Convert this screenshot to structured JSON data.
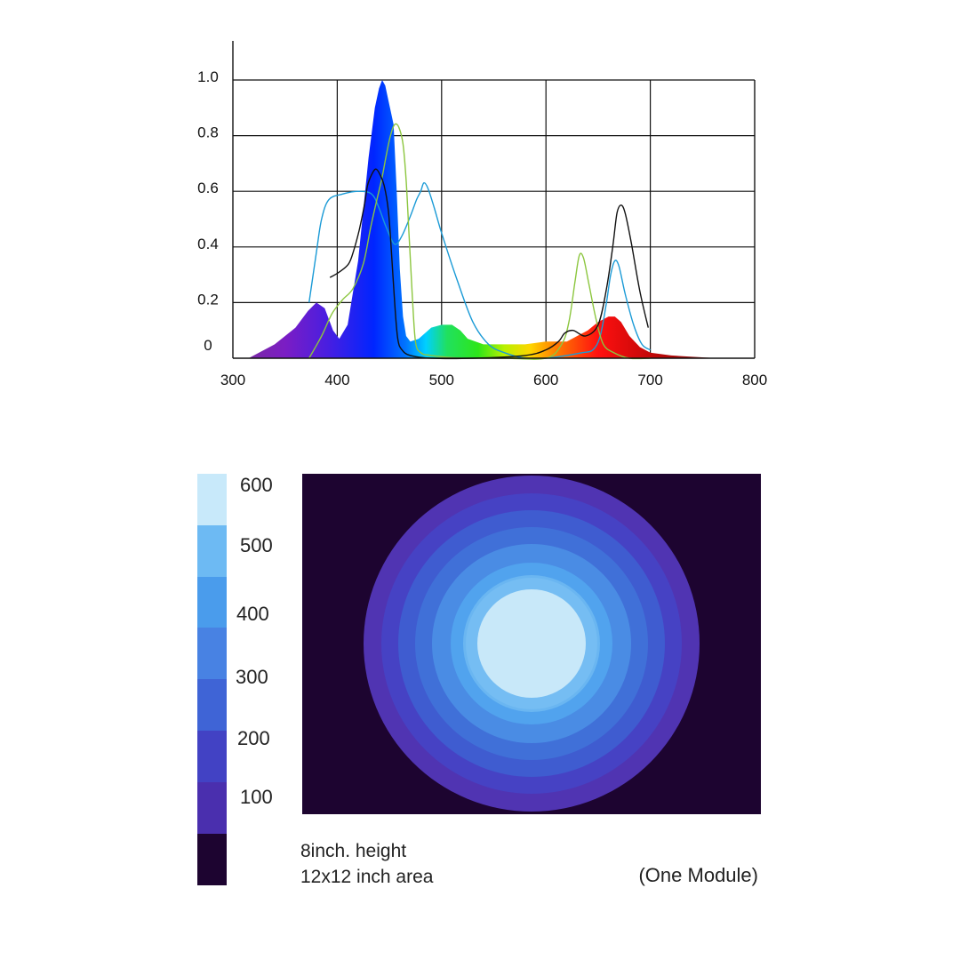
{
  "chart_data": [
    {
      "type": "area",
      "title": "",
      "xlabel": "",
      "ylabel": "",
      "xlim": [
        300,
        800
      ],
      "ylim": [
        0,
        1.0
      ],
      "x_ticks": [
        "300",
        "400",
        "500",
        "600",
        "700",
        "800"
      ],
      "y_ticks": [
        "1.0",
        "0.8",
        "0.6",
        "0.4",
        "0.2",
        "0"
      ],
      "grid": true,
      "filled_spectrum": {
        "x": [
          315,
          340,
          360,
          372,
          380,
          388,
          396,
          402,
          410,
          420,
          430,
          436,
          440,
          443,
          446,
          450,
          454,
          457,
          460,
          463,
          466,
          470,
          478,
          490,
          500,
          510,
          518,
          525,
          540,
          560,
          580,
          600,
          620,
          630,
          640,
          650,
          660,
          666,
          672,
          680,
          690,
          700,
          720,
          740,
          765
        ],
        "y": [
          0,
          0.05,
          0.11,
          0.17,
          0.2,
          0.18,
          0.1,
          0.07,
          0.12,
          0.35,
          0.72,
          0.9,
          0.97,
          1.0,
          0.98,
          0.91,
          0.84,
          0.6,
          0.32,
          0.15,
          0.08,
          0.06,
          0.07,
          0.11,
          0.12,
          0.12,
          0.1,
          0.07,
          0.05,
          0.05,
          0.05,
          0.06,
          0.06,
          0.08,
          0.1,
          0.13,
          0.15,
          0.15,
          0.13,
          0.08,
          0.04,
          0.02,
          0.01,
          0.005,
          0
        ]
      },
      "series": [
        {
          "color": "#1a9ad6",
          "x": [
            373,
            380,
            385,
            392,
            405,
            420,
            433,
            440,
            447,
            455,
            462,
            470,
            476,
            480,
            483,
            487,
            493,
            500,
            515,
            530,
            545,
            560,
            580,
            600,
            620,
            635,
            645,
            652,
            658,
            662,
            666,
            670,
            676,
            684,
            692,
            700
          ],
          "y": [
            0.2,
            0.38,
            0.5,
            0.57,
            0.59,
            0.6,
            0.59,
            0.54,
            0.47,
            0.41,
            0.44,
            0.51,
            0.57,
            0.6,
            0.63,
            0.61,
            0.54,
            0.45,
            0.28,
            0.13,
            0.05,
            0.02,
            0.0,
            0.0,
            0.01,
            0.02,
            0.03,
            0.08,
            0.2,
            0.3,
            0.35,
            0.33,
            0.23,
            0.12,
            0.05,
            0.03
          ]
        },
        {
          "color": "#8cc63f",
          "x": [
            373,
            385,
            395,
            405,
            415,
            425,
            432,
            438,
            443,
            447,
            451,
            455,
            459,
            463,
            466,
            469,
            472,
            475,
            480,
            490,
            520,
            560,
            600,
            615,
            622,
            628,
            632,
            636,
            641,
            648,
            655,
            665,
            680,
            700
          ],
          "y": [
            0.0,
            0.08,
            0.16,
            0.21,
            0.25,
            0.34,
            0.47,
            0.57,
            0.65,
            0.73,
            0.8,
            0.84,
            0.83,
            0.77,
            0.64,
            0.43,
            0.22,
            0.06,
            0.02,
            0.01,
            0.0,
            0.0,
            0.0,
            0.05,
            0.13,
            0.28,
            0.37,
            0.36,
            0.27,
            0.14,
            0.05,
            0.02,
            0.0,
            0.0
          ]
        },
        {
          "color": "#111111",
          "x": [
            393,
            402,
            411,
            416,
            421,
            426,
            429,
            433,
            437,
            441,
            445,
            449,
            452,
            455,
            458,
            462,
            470,
            490,
            530,
            580,
            600,
            612,
            618,
            626,
            638,
            650,
            658,
            664,
            668,
            672,
            676,
            682,
            690,
            698
          ],
          "y": [
            0.29,
            0.31,
            0.34,
            0.39,
            0.46,
            0.55,
            0.62,
            0.66,
            0.68,
            0.66,
            0.62,
            0.53,
            0.38,
            0.2,
            0.07,
            0.03,
            0.01,
            0.0,
            0.0,
            0.01,
            0.03,
            0.06,
            0.09,
            0.1,
            0.08,
            0.12,
            0.25,
            0.4,
            0.52,
            0.55,
            0.52,
            0.41,
            0.24,
            0.11
          ]
        }
      ]
    },
    {
      "type": "heatmap",
      "title": "",
      "scale_labels": [
        "600",
        "500",
        "400",
        "300",
        "200",
        "100"
      ],
      "scale_colors": [
        "#c8e9fa",
        "#6dbaf3",
        "#4a9cec",
        "#4882e3",
        "#3f64d6",
        "#4242c4",
        "#4a2fae",
        "#1d0430"
      ],
      "map_background": "#1d0430",
      "ring_colors": [
        "#5034b2",
        "#4642c4",
        "#3f5cd0",
        "#4070d8",
        "#4a8ce4",
        "#51a3ee",
        "#6ab6f1",
        "#75bdf3",
        "#c8e8f9"
      ]
    }
  ],
  "captions": {
    "line1": "8inch. height",
    "line2": "12x12 inch area",
    "right": "(One Module)"
  }
}
